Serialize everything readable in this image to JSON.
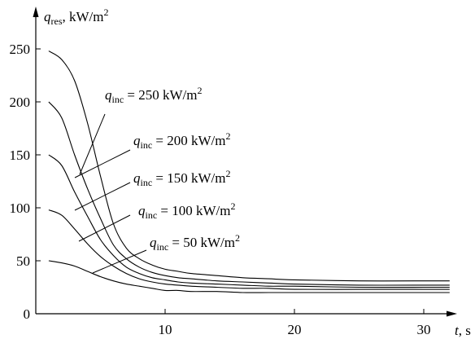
{
  "chart_data": {
    "type": "line",
    "title": "",
    "xlabel": {
      "symbol": "t",
      "unit": ", s"
    },
    "ylabel": {
      "symbol": "q",
      "sub": "res",
      "unit": ", kW/m",
      "sup": "2"
    },
    "xlim": [
      0,
      33
    ],
    "ylim": [
      0,
      265
    ],
    "x_ticks": [
      10,
      20,
      30
    ],
    "y_ticks": [
      0,
      50,
      100,
      150,
      200,
      250
    ],
    "grid": false,
    "legend": "none",
    "x": [
      1,
      2,
      3,
      4,
      5,
      6,
      7,
      8,
      9,
      10,
      11,
      12,
      14,
      16,
      18,
      20,
      25,
      30,
      32
    ],
    "series": [
      {
        "values": [
          248,
          240,
          220,
          180,
          130,
          85,
          62,
          52,
          46,
          42,
          40,
          38,
          36,
          34,
          33,
          32,
          31,
          31,
          31
        ]
      },
      {
        "values": [
          200,
          185,
          150,
          118,
          90,
          65,
          52,
          44,
          39,
          36,
          34,
          33,
          31,
          30,
          29,
          28,
          27,
          27,
          27
        ]
      },
      {
        "values": [
          150,
          140,
          115,
          92,
          70,
          55,
          44,
          38,
          34,
          32,
          30,
          29,
          28,
          27,
          26,
          26,
          25,
          25,
          25
        ]
      },
      {
        "values": [
          98,
          93,
          80,
          66,
          54,
          45,
          38,
          33,
          30,
          28,
          27,
          26,
          25,
          24,
          24,
          23,
          23,
          23,
          23
        ]
      },
      {
        "values": [
          50,
          48,
          45,
          40,
          35,
          31,
          28,
          26,
          24,
          22,
          22,
          21,
          21,
          20,
          20,
          20,
          20,
          20,
          20
        ]
      }
    ],
    "annotations": [
      {
        "symbol": "q",
        "sub": "inc",
        "text": " = 250 kW/m",
        "sup": "2",
        "value": 250
      },
      {
        "symbol": "q",
        "sub": "inc",
        "text": " = 200 kW/m",
        "sup": "2",
        "value": 200
      },
      {
        "symbol": "q",
        "sub": "inc",
        "text": " = 150 kW/m",
        "sup": "2",
        "value": 150
      },
      {
        "symbol": "q",
        "sub": "inc",
        "text": " = 100 kW/m",
        "sup": "2",
        "value": 100
      },
      {
        "symbol": "q",
        "sub": "inc",
        "text": " = 50 kW/m",
        "sup": "2",
        "value": 50
      }
    ]
  }
}
